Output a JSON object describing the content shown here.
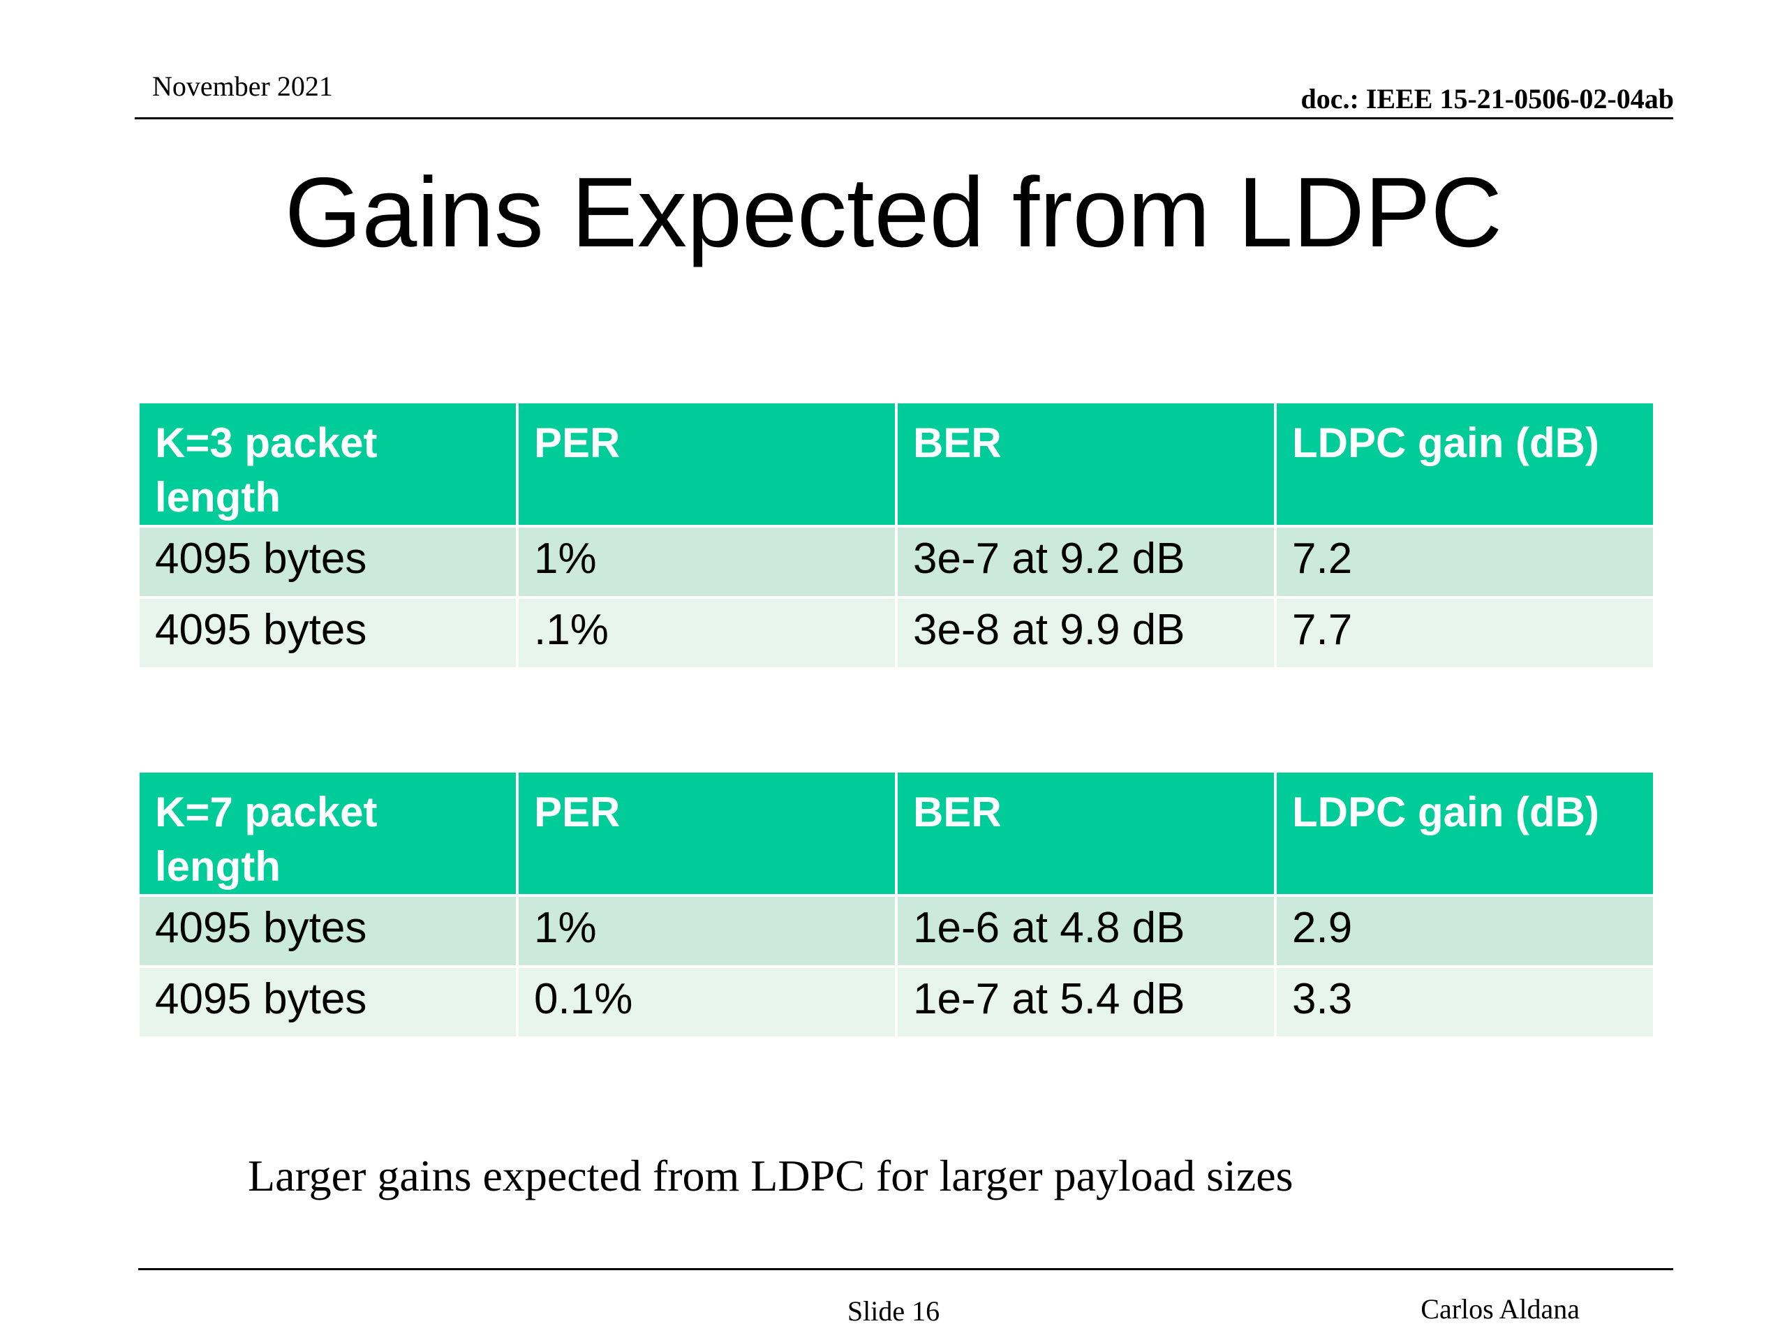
{
  "header": {
    "date": "November 2021",
    "doc_id": "doc.: IEEE 15-21-0506-02-04ab"
  },
  "title": "Gains Expected from LDPC",
  "tables": [
    {
      "headers": [
        "K=3 packet length",
        "PER",
        "BER",
        "LDPC gain (dB)"
      ],
      "rows": [
        [
          "4095 bytes",
          "1%",
          "3e-7 at 9.2 dB",
          "7.2"
        ],
        [
          "4095 bytes",
          ".1%",
          "3e-8 at 9.9 dB",
          "7.7"
        ]
      ]
    },
    {
      "headers": [
        "K=7 packet length",
        "PER",
        "BER",
        "LDPC gain (dB)"
      ],
      "rows": [
        [
          "4095 bytes",
          "1%",
          "1e-6 at 4.8 dB",
          "2.9"
        ],
        [
          "4095 bytes",
          "0.1%",
          "1e-7 at 5.4 dB",
          "3.3"
        ]
      ]
    }
  ],
  "note": "Larger gains expected from LDPC for larger payload sizes",
  "footer": {
    "slide": "Slide 16",
    "author": "Carlos Aldana"
  },
  "colors": {
    "header_fill": "#00cc99",
    "row_odd": "#cce9de",
    "row_even": "#e8f5ef"
  }
}
